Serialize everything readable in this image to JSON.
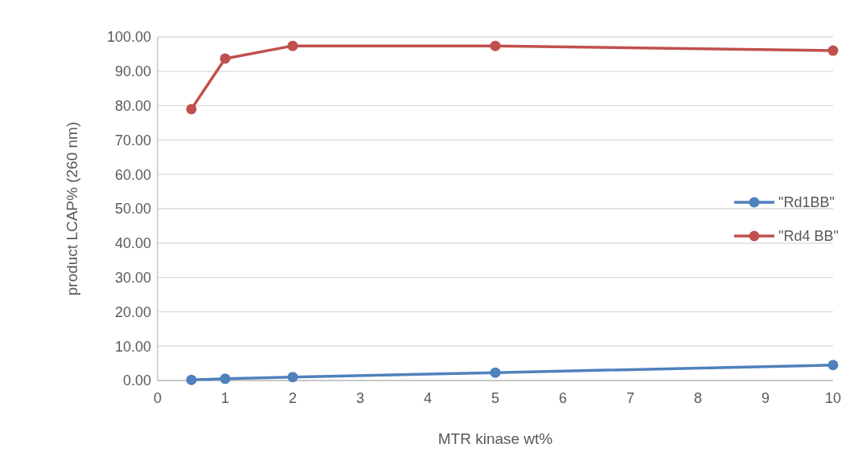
{
  "chart_data": {
    "type": "line",
    "xlabel": "MTR kinase wt%",
    "ylabel": "product LCAP% (260 nm)",
    "x": [
      0.5,
      1,
      2,
      5,
      10
    ],
    "series": [
      {
        "name": "\"Rd1BB\"",
        "color": "#4f81bd",
        "values": [
          0.2,
          0.5,
          1.0,
          2.3,
          4.5
        ]
      },
      {
        "name": "\"Rd4 BB\"",
        "color": "#c0504d",
        "values": [
          79.0,
          93.7,
          97.4,
          97.4,
          96.0
        ]
      }
    ],
    "xlim": [
      0,
      10
    ],
    "xticks": [
      0,
      1,
      2,
      3,
      4,
      5,
      6,
      7,
      8,
      9,
      10
    ],
    "ylim": [
      0,
      100
    ],
    "yticks": [
      {
        "value": 0,
        "label": "0.00"
      },
      {
        "value": 10,
        "label": "10.00"
      },
      {
        "value": 20,
        "label": "20.00"
      },
      {
        "value": 30,
        "label": "30.00"
      },
      {
        "value": 40,
        "label": "40.00"
      },
      {
        "value": 50,
        "label": "50.00"
      },
      {
        "value": 60,
        "label": "60.00"
      },
      {
        "value": 70,
        "label": "70.00"
      },
      {
        "value": 80,
        "label": "80.00"
      },
      {
        "value": 90,
        "label": "90.00"
      },
      {
        "value": 100,
        "label": "100.00"
      }
    ],
    "grid": "y",
    "legend": "right",
    "marker": "circle",
    "line_style": "solid"
  }
}
